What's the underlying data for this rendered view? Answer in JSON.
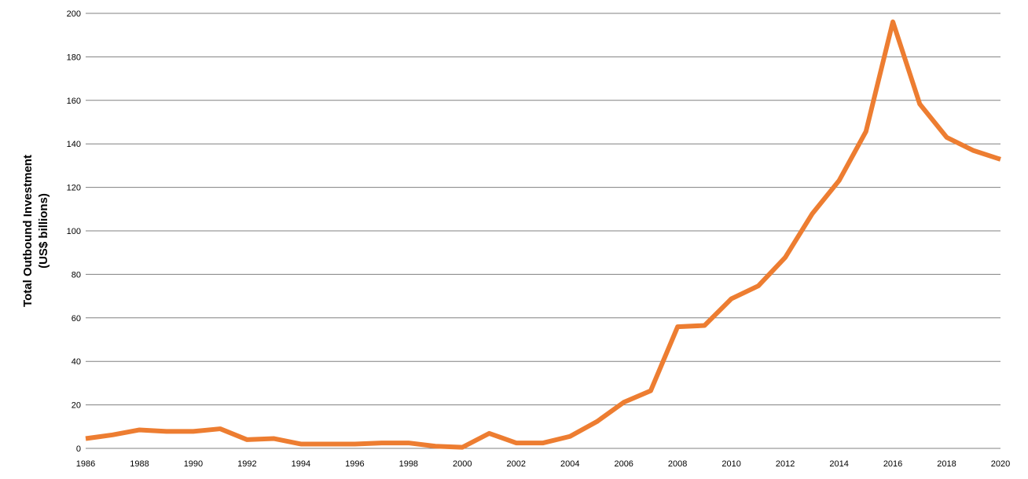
{
  "chart_data": {
    "type": "line",
    "title": "",
    "xlabel": "",
    "ylabel_line1": "Total Outbound Investment",
    "ylabel_line2": "(US$ billions)",
    "xlim": [
      1986,
      2020
    ],
    "ylim": [
      0,
      200
    ],
    "x_ticks": [
      "1986",
      "1988",
      "1990",
      "1992",
      "1994",
      "1996",
      "1998",
      "2000",
      "2002",
      "2004",
      "2006",
      "2008",
      "2010",
      "2012",
      "2014",
      "2016",
      "2018",
      "2020"
    ],
    "y_ticks": [
      "0",
      "20",
      "40",
      "60",
      "80",
      "100",
      "120",
      "140",
      "160",
      "180",
      "200"
    ],
    "grid": "horizontal",
    "legend": "none",
    "line_color": "#ED7D31",
    "grid_color": "#808080",
    "series": [
      {
        "x": [
          1986,
          1987,
          1988,
          1989,
          1990,
          1991,
          1992,
          1993,
          1994,
          1995,
          1996,
          1997,
          1998,
          1999,
          2000,
          2001,
          2002,
          2003,
          2004,
          2005,
          2006,
          2007,
          2008,
          2009,
          2010,
          2011,
          2012,
          2013,
          2014,
          2015,
          2016,
          2017,
          2018,
          2019,
          2020
        ],
        "values": [
          4.5,
          6.2,
          8.5,
          7.8,
          7.8,
          9.0,
          4.0,
          4.5,
          2.0,
          2.0,
          2.0,
          2.5,
          2.5,
          1.0,
          0.5,
          6.9,
          2.5,
          2.5,
          5.5,
          12.3,
          21.2,
          26.5,
          55.9,
          56.5,
          68.8,
          74.7,
          87.8,
          107.8,
          123.1,
          145.7,
          196.1,
          158.3,
          143.0,
          136.9,
          132.9
        ]
      }
    ]
  }
}
